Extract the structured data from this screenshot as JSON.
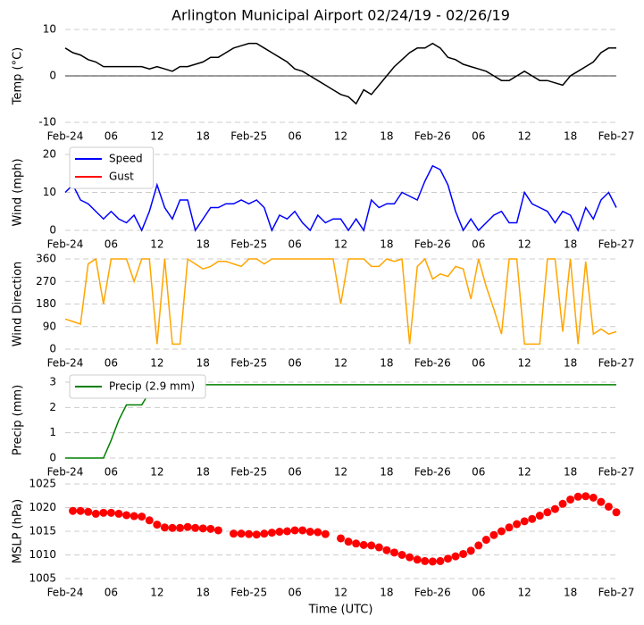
{
  "chart_data": [
    {
      "type": "line",
      "title": "Arlington Municipal Airport 02/24/19 - 02/26/19",
      "ylabel": "Temp (°C)",
      "zero_line": true,
      "x": [
        0,
        1,
        2,
        3,
        4,
        5,
        6,
        7,
        8,
        9,
        10,
        11,
        12,
        13,
        14,
        15,
        16,
        17,
        18,
        19,
        20,
        21,
        22,
        23,
        24,
        25,
        26,
        27,
        28,
        29,
        30,
        31,
        32,
        33,
        34,
        35,
        36,
        37,
        38,
        39,
        40,
        41,
        42,
        43,
        44,
        45,
        46,
        47,
        48,
        49,
        50,
        51,
        52,
        53,
        54,
        55,
        56,
        57,
        58,
        59,
        60,
        61,
        62,
        63,
        64,
        65,
        66,
        67,
        68,
        69,
        70,
        71,
        72
      ],
      "series": [
        {
          "color": "#000000",
          "values": [
            6,
            5,
            4.5,
            3.5,
            3,
            2,
            2,
            2,
            2,
            2,
            2,
            1.5,
            2,
            1.5,
            1,
            2,
            2,
            2.5,
            3,
            4,
            4,
            5,
            6,
            6.5,
            7,
            7,
            6,
            5,
            4,
            3,
            1.5,
            1,
            0,
            -1,
            -2,
            -3,
            -4,
            -4.5,
            -6,
            -3,
            -4,
            -2,
            0,
            2,
            3.5,
            5,
            6,
            6,
            7,
            6,
            4,
            3.5,
            2.5,
            2,
            1.5,
            1,
            0,
            -1,
            -1,
            0,
            1,
            0,
            -1,
            -1,
            -1.5,
            -2,
            0,
            1,
            2,
            3,
            5,
            6,
            6
          ]
        }
      ],
      "xlim": [
        0,
        72
      ],
      "xticks": [
        {
          "value": 0,
          "label": "Feb-24"
        },
        {
          "value": 6,
          "label": "06"
        },
        {
          "value": 12,
          "label": "12"
        },
        {
          "value": 18,
          "label": "18"
        },
        {
          "value": 24,
          "label": "Feb-25"
        },
        {
          "value": 30,
          "label": "06"
        },
        {
          "value": 36,
          "label": "12"
        },
        {
          "value": 42,
          "label": "18"
        },
        {
          "value": 48,
          "label": "Feb-26"
        },
        {
          "value": 54,
          "label": "06"
        },
        {
          "value": 60,
          "label": "12"
        },
        {
          "value": 66,
          "label": "18"
        },
        {
          "value": 72,
          "label": "Feb-27"
        }
      ],
      "ylim": [
        -10,
        10
      ],
      "yticks": [
        -10,
        0,
        10
      ],
      "grid": true
    },
    {
      "type": "line",
      "ylabel": "Wind (mph)",
      "legend": "upper left",
      "x": [
        0,
        1,
        2,
        3,
        4,
        5,
        6,
        7,
        8,
        9,
        10,
        11,
        12,
        13,
        14,
        15,
        16,
        17,
        18,
        19,
        20,
        21,
        22,
        23,
        24,
        25,
        26,
        27,
        28,
        29,
        30,
        31,
        32,
        33,
        34,
        35,
        36,
        37,
        38,
        39,
        40,
        41,
        42,
        43,
        44,
        45,
        46,
        47,
        48,
        49,
        50,
        51,
        52,
        53,
        54,
        55,
        56,
        57,
        58,
        59,
        60,
        61,
        62,
        63,
        64,
        65,
        66,
        67,
        68,
        69,
        70,
        71,
        72
      ],
      "series": [
        {
          "name": "Speed",
          "color": "#0000ff",
          "values": [
            10,
            12,
            8,
            7,
            5,
            3,
            5,
            3,
            2,
            4,
            0,
            5,
            12,
            6,
            3,
            8,
            8,
            0,
            3,
            6,
            6,
            7,
            7,
            8,
            7,
            8,
            6,
            0,
            4,
            3,
            5,
            2,
            0,
            4,
            2,
            3,
            3,
            0,
            3,
            0,
            8,
            6,
            7,
            7,
            10,
            9,
            8,
            13,
            17,
            16,
            12,
            5,
            0,
            3,
            0,
            2,
            4,
            5,
            2,
            2,
            10,
            7,
            6,
            5,
            2,
            5,
            4,
            0,
            6,
            3,
            8,
            10,
            6
          ]
        },
        {
          "name": "Gust",
          "color": "#ff0000",
          "values": [
            null,
            null,
            null,
            null,
            null,
            null,
            null,
            null,
            null,
            null,
            null,
            null,
            null,
            null,
            null,
            null,
            null,
            null,
            null,
            null,
            null,
            null,
            null,
            null,
            null,
            null,
            null,
            null,
            null,
            null,
            null,
            null,
            null,
            null,
            null,
            null,
            null,
            null,
            null,
            null,
            null,
            null,
            null,
            null,
            null,
            null,
            null,
            null,
            null,
            null,
            null,
            null,
            null,
            null,
            null,
            null,
            null,
            null,
            null,
            null,
            null,
            null,
            null,
            null,
            null,
            null,
            null,
            null,
            null,
            null,
            null,
            null,
            null
          ]
        }
      ],
      "xlim": [
        0,
        72
      ],
      "xticks": [
        {
          "value": 0,
          "label": "Feb-24"
        },
        {
          "value": 6,
          "label": "06"
        },
        {
          "value": 12,
          "label": "12"
        },
        {
          "value": 18,
          "label": "18"
        },
        {
          "value": 24,
          "label": "Feb-25"
        },
        {
          "value": 30,
          "label": "06"
        },
        {
          "value": 36,
          "label": "12"
        },
        {
          "value": 42,
          "label": "18"
        },
        {
          "value": 48,
          "label": "Feb-26"
        },
        {
          "value": 54,
          "label": "06"
        },
        {
          "value": 60,
          "label": "12"
        },
        {
          "value": 66,
          "label": "18"
        },
        {
          "value": 72,
          "label": "Feb-27"
        }
      ],
      "ylim": [
        0,
        20
      ],
      "yticks": [
        0,
        10,
        20
      ],
      "grid": true
    },
    {
      "type": "line",
      "ylabel": "Wind Direction",
      "x": [
        0,
        1,
        2,
        3,
        4,
        5,
        6,
        7,
        8,
        9,
        10,
        11,
        12,
        13,
        14,
        15,
        16,
        17,
        18,
        19,
        20,
        21,
        22,
        23,
        24,
        25,
        26,
        27,
        28,
        29,
        30,
        31,
        32,
        33,
        34,
        35,
        36,
        37,
        38,
        39,
        40,
        41,
        42,
        43,
        44,
        45,
        46,
        47,
        48,
        49,
        50,
        51,
        52,
        53,
        54,
        55,
        56,
        57,
        58,
        59,
        60,
        61,
        62,
        63,
        64,
        65,
        66,
        67,
        68,
        69,
        70,
        71,
        72
      ],
      "series": [
        {
          "color": "#ffa500",
          "values": [
            120,
            110,
            100,
            340,
            360,
            180,
            360,
            360,
            360,
            270,
            360,
            360,
            20,
            360,
            20,
            20,
            360,
            340,
            320,
            330,
            350,
            350,
            340,
            330,
            360,
            360,
            340,
            360,
            360,
            360,
            360,
            360,
            360,
            360,
            360,
            360,
            180,
            360,
            360,
            360,
            330,
            330,
            360,
            350,
            360,
            20,
            330,
            360,
            280,
            300,
            290,
            330,
            320,
            200,
            360,
            250,
            160,
            60,
            360,
            360,
            20,
            20,
            20,
            360,
            360,
            70,
            360,
            20,
            350,
            60,
            80,
            60,
            70
          ]
        }
      ],
      "xlim": [
        0,
        72
      ],
      "xticks": [
        {
          "value": 0,
          "label": "Feb-24"
        },
        {
          "value": 6,
          "label": "06"
        },
        {
          "value": 12,
          "label": "12"
        },
        {
          "value": 18,
          "label": "18"
        },
        {
          "value": 24,
          "label": "Feb-25"
        },
        {
          "value": 30,
          "label": "06"
        },
        {
          "value": 36,
          "label": "12"
        },
        {
          "value": 42,
          "label": "18"
        },
        {
          "value": 48,
          "label": "Feb-26"
        },
        {
          "value": 54,
          "label": "06"
        },
        {
          "value": 60,
          "label": "12"
        },
        {
          "value": 66,
          "label": "18"
        },
        {
          "value": 72,
          "label": "Feb-27"
        }
      ],
      "ylim": [
        0,
        360
      ],
      "yticks": [
        0,
        90,
        180,
        270,
        360
      ],
      "grid": true
    },
    {
      "type": "line",
      "ylabel": "Precip (mm)",
      "legend": "upper left",
      "x": [
        0,
        1,
        2,
        3,
        4,
        5,
        6,
        7,
        8,
        9,
        10,
        11,
        12,
        13,
        14,
        15,
        16,
        17,
        18,
        19,
        20,
        21,
        22,
        23,
        24,
        25,
        26,
        27,
        28,
        29,
        30,
        31,
        32,
        33,
        34,
        35,
        36,
        37,
        38,
        39,
        40,
        41,
        42,
        43,
        44,
        45,
        46,
        47,
        48,
        49,
        50,
        51,
        52,
        53,
        54,
        55,
        56,
        57,
        58,
        59,
        60,
        61,
        62,
        63,
        64,
        65,
        66,
        67,
        68,
        69,
        70,
        71,
        72
      ],
      "series": [
        {
          "name": "Precip (2.9 mm)",
          "color": "#008000",
          "values": [
            0,
            0,
            0,
            0,
            0,
            0,
            0.7,
            1.5,
            2.1,
            2.1,
            2.1,
            2.6,
            2.9,
            2.9,
            2.9,
            2.9,
            2.9,
            2.9,
            2.9,
            2.9,
            2.9,
            2.9,
            2.9,
            2.9,
            2.9,
            2.9,
            2.9,
            2.9,
            2.9,
            2.9,
            2.9,
            2.9,
            2.9,
            2.9,
            2.9,
            2.9,
            2.9,
            2.9,
            2.9,
            2.9,
            2.9,
            2.9,
            2.9,
            2.9,
            2.9,
            2.9,
            2.9,
            2.9,
            2.9,
            2.9,
            2.9,
            2.9,
            2.9,
            2.9,
            2.9,
            2.9,
            2.9,
            2.9,
            2.9,
            2.9,
            2.9,
            2.9,
            2.9,
            2.9,
            2.9,
            2.9,
            2.9,
            2.9,
            2.9,
            2.9,
            2.9,
            2.9,
            2.9
          ]
        }
      ],
      "xlim": [
        0,
        72
      ],
      "xticks": [
        {
          "value": 0,
          "label": "Feb-24"
        },
        {
          "value": 6,
          "label": "06"
        },
        {
          "value": 12,
          "label": "12"
        },
        {
          "value": 18,
          "label": "18"
        },
        {
          "value": 24,
          "label": "Feb-25"
        },
        {
          "value": 30,
          "label": "06"
        },
        {
          "value": 36,
          "label": "12"
        },
        {
          "value": 42,
          "label": "18"
        },
        {
          "value": 48,
          "label": "Feb-26"
        },
        {
          "value": 54,
          "label": "06"
        },
        {
          "value": 60,
          "label": "12"
        },
        {
          "value": 66,
          "label": "18"
        },
        {
          "value": 72,
          "label": "Feb-27"
        }
      ],
      "ylim": [
        0,
        3
      ],
      "yticks": [
        0,
        1,
        2,
        3
      ],
      "grid": true
    },
    {
      "type": "scatter",
      "ylabel": "MSLP (hPa)",
      "xlabel": "Time (UTC)",
      "x": [
        1,
        2,
        3,
        4,
        5,
        6,
        7,
        8,
        9,
        10,
        11,
        12,
        13,
        14,
        15,
        16,
        17,
        18,
        19,
        20,
        21,
        22,
        23,
        24,
        25,
        26,
        27,
        28,
        29,
        30,
        31,
        32,
        33,
        34,
        35,
        36,
        37,
        38,
        39,
        40,
        41,
        42,
        43,
        44,
        45,
        46,
        47,
        48,
        49,
        50,
        51,
        52,
        53,
        54,
        55,
        56,
        57,
        58,
        59,
        60,
        61,
        62,
        63,
        64,
        65,
        66,
        67,
        68,
        69,
        70,
        71,
        72
      ],
      "series": [
        {
          "color": "#ff0000",
          "values": [
            1019.3,
            1019.3,
            1019.1,
            1018.7,
            1018.9,
            1018.9,
            1018.7,
            1018.4,
            1018.2,
            1018.1,
            1017.3,
            1016.4,
            1015.8,
            1015.7,
            1015.7,
            1015.9,
            1015.7,
            1015.6,
            1015.5,
            1015.2,
            null,
            1014.5,
            1014.5,
            1014.4,
            1014.3,
            1014.5,
            1014.7,
            1014.9,
            1015.0,
            1015.2,
            1015.2,
            1014.9,
            1014.8,
            1014.4,
            null,
            1013.5,
            1012.8,
            1012.4,
            1012.1,
            1012.0,
            1011.6,
            1011.0,
            1010.5,
            1010.0,
            1009.5,
            1009.0,
            1008.7,
            1008.6,
            1008.7,
            1009.2,
            1009.7,
            1010.2,
            1010.9,
            1012.0,
            1013.2,
            1014.2,
            1015.0,
            1015.8,
            1016.5,
            1017.1,
            1017.6,
            1018.3,
            1019.0,
            1019.7,
            1020.8,
            1021.7,
            1022.3,
            1022.4,
            1022.1,
            1021.2,
            1020.2,
            1019.0
          ]
        }
      ],
      "xlim": [
        0,
        72
      ],
      "xticks": [
        {
          "value": 0,
          "label": "Feb-24"
        },
        {
          "value": 6,
          "label": "06"
        },
        {
          "value": 12,
          "label": "12"
        },
        {
          "value": 18,
          "label": "18"
        },
        {
          "value": 24,
          "label": "Feb-25"
        },
        {
          "value": 30,
          "label": "06"
        },
        {
          "value": 36,
          "label": "12"
        },
        {
          "value": 42,
          "label": "18"
        },
        {
          "value": 48,
          "label": "Feb-26"
        },
        {
          "value": 54,
          "label": "06"
        },
        {
          "value": 60,
          "label": "12"
        },
        {
          "value": 66,
          "label": "18"
        },
        {
          "value": 72,
          "label": "Feb-27"
        }
      ],
      "ylim": [
        1005,
        1025
      ],
      "yticks": [
        1005,
        1010,
        1015,
        1020,
        1025
      ],
      "grid": true
    }
  ]
}
